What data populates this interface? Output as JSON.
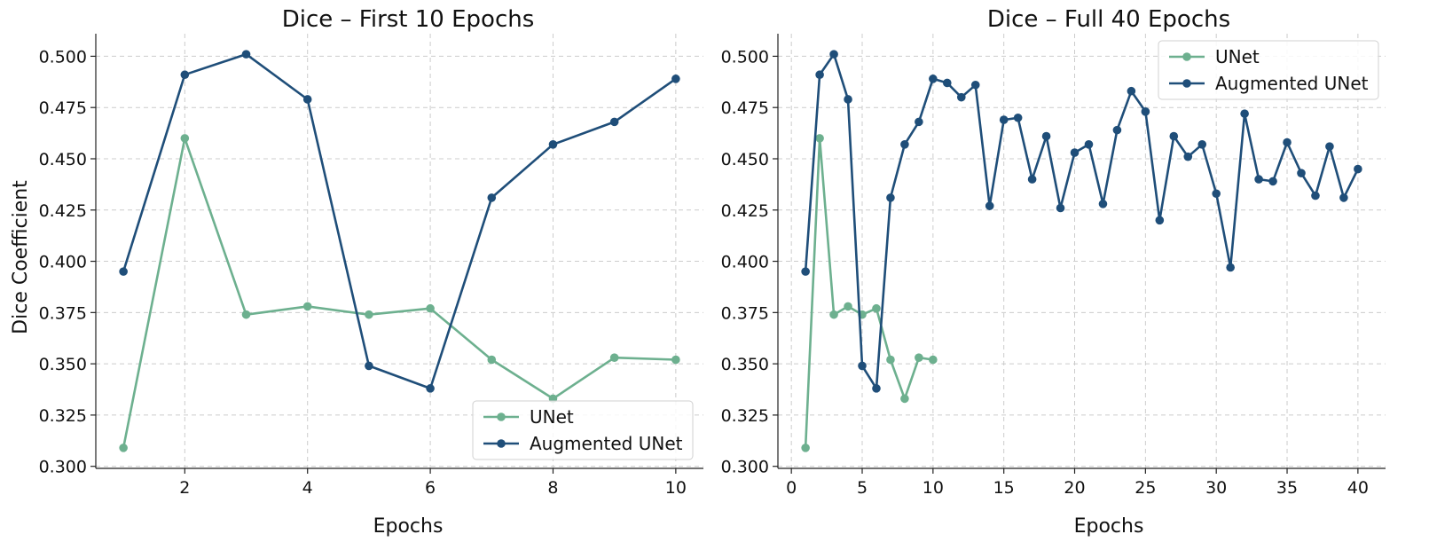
{
  "colors": {
    "unet": "#6db08f",
    "augmented": "#1f4e79"
  },
  "chart_data": [
    {
      "type": "line",
      "title": "Dice – First 10 Epochs",
      "xlabel": "Epochs",
      "ylabel": "Dice Coefficient",
      "xlim": [
        0.55,
        10.45
      ],
      "ylim": [
        0.299,
        0.511
      ],
      "xticks": [
        2,
        4,
        6,
        8,
        10
      ],
      "xtick_labels": [
        "2",
        "4",
        "6",
        "8",
        "10"
      ],
      "yticks": [
        0.3,
        0.325,
        0.35,
        0.375,
        0.4,
        0.425,
        0.45,
        0.475,
        0.5
      ],
      "ytick_labels": [
        "0.300",
        "0.325",
        "0.350",
        "0.375",
        "0.400",
        "0.425",
        "0.450",
        "0.475",
        "0.500"
      ],
      "grid": true,
      "legend_position": "lower-right",
      "series": [
        {
          "name": "UNet",
          "color": "#6db08f",
          "x": [
            1,
            2,
            3,
            4,
            5,
            6,
            7,
            8,
            9,
            10
          ],
          "y": [
            0.309,
            0.46,
            0.374,
            0.378,
            0.374,
            0.377,
            0.352,
            0.333,
            0.353,
            0.352
          ]
        },
        {
          "name": "Augmented UNet",
          "color": "#1f4e79",
          "x": [
            1,
            2,
            3,
            4,
            5,
            6,
            7,
            8,
            9,
            10
          ],
          "y": [
            0.395,
            0.491,
            0.501,
            0.479,
            0.349,
            0.338,
            0.431,
            0.457,
            0.468,
            0.489
          ]
        }
      ]
    },
    {
      "type": "line",
      "title": "Dice – Full 40 Epochs",
      "xlabel": "Epochs",
      "ylabel": "",
      "xlim": [
        -0.95,
        41.95
      ],
      "ylim": [
        0.299,
        0.511
      ],
      "xticks": [
        0,
        5,
        10,
        15,
        20,
        25,
        30,
        35,
        40
      ],
      "xtick_labels": [
        "0",
        "5",
        "10",
        "15",
        "20",
        "25",
        "30",
        "35",
        "40"
      ],
      "yticks": [
        0.3,
        0.325,
        0.35,
        0.375,
        0.4,
        0.425,
        0.45,
        0.475,
        0.5
      ],
      "ytick_labels": [
        "0.300",
        "0.325",
        "0.350",
        "0.375",
        "0.400",
        "0.425",
        "0.450",
        "0.475",
        "0.500"
      ],
      "grid": true,
      "legend_position": "upper-right",
      "series": [
        {
          "name": "UNet",
          "color": "#6db08f",
          "x": [
            1,
            2,
            3,
            4,
            5,
            6,
            7,
            8,
            9,
            10
          ],
          "y": [
            0.309,
            0.46,
            0.374,
            0.378,
            0.374,
            0.377,
            0.352,
            0.333,
            0.353,
            0.352
          ]
        },
        {
          "name": "Augmented UNet",
          "color": "#1f4e79",
          "x": [
            1,
            2,
            3,
            4,
            5,
            6,
            7,
            8,
            9,
            10,
            11,
            12,
            13,
            14,
            15,
            16,
            17,
            18,
            19,
            20,
            21,
            22,
            23,
            24,
            25,
            26,
            27,
            28,
            29,
            30,
            31,
            32,
            33,
            34,
            35,
            36,
            37,
            38,
            39,
            40
          ],
          "y": [
            0.395,
            0.491,
            0.501,
            0.479,
            0.349,
            0.338,
            0.431,
            0.457,
            0.468,
            0.489,
            0.487,
            0.48,
            0.486,
            0.427,
            0.469,
            0.47,
            0.44,
            0.461,
            0.426,
            0.453,
            0.457,
            0.428,
            0.464,
            0.483,
            0.473,
            0.42,
            0.461,
            0.451,
            0.457,
            0.433,
            0.397,
            0.472,
            0.44,
            0.439,
            0.458,
            0.443,
            0.432,
            0.456,
            0.431,
            0.445
          ]
        }
      ]
    }
  ]
}
